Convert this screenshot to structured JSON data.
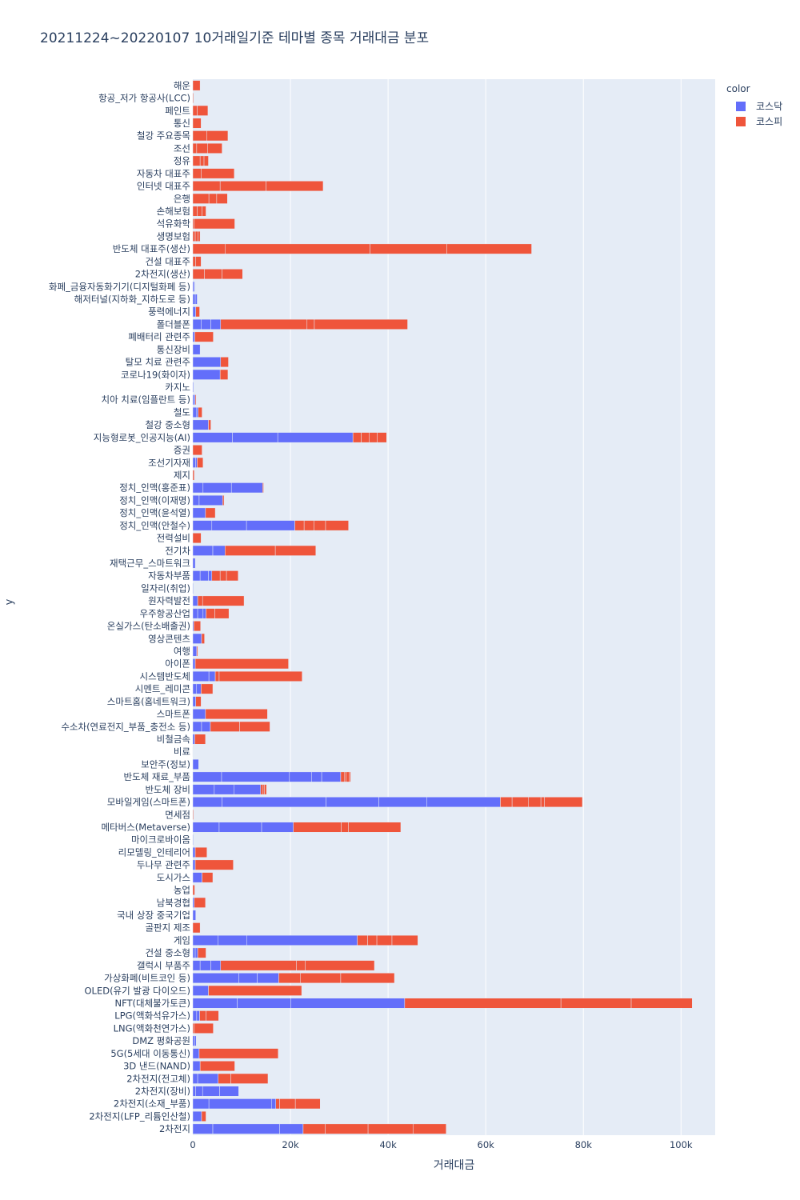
{
  "chart_data": {
    "type": "bar",
    "orientation": "horizontal",
    "barmode": "stack",
    "title": "20211224~20220107 10거래일기준 테마별 종목 거래대금 분포",
    "xlabel": "거래대금",
    "ylabel": "y",
    "xlim": [
      0,
      107000
    ],
    "xticks": [
      0,
      20000,
      40000,
      60000,
      80000,
      100000
    ],
    "xtick_labels": [
      "0",
      "20k",
      "40k",
      "60k",
      "80k",
      "100k"
    ],
    "legend_title": "color",
    "legend_position": "top-right",
    "grid": true,
    "series": [
      {
        "name": "코스닥",
        "color": "#636efa"
      },
      {
        "name": "코스피",
        "color": "#ef553b"
      }
    ],
    "categories": [
      "해운",
      "항공_저가 항공사(LCC)",
      "페인트",
      "통신",
      "철강 주요종목",
      "조선",
      "정유",
      "자동차 대표주",
      "인터넷 대표주",
      "은행",
      "손해보험",
      "석유화학",
      "생명보험",
      "반도체 대표주(생산)",
      "건설 대표주",
      "2차전지(생산)",
      "화폐_금융자동화기기(디지털화폐 등)",
      "해저터널(지하화_지하도로 등)",
      "풍력에너지",
      "폴더블폰",
      "폐배터리 관련주",
      "통신장비",
      "탈모 치료 관련주",
      "코로나19(화이자)",
      "카지노",
      "치아 치료(임플란트 등)",
      "철도",
      "철강 중소형",
      "지능형로봇_인공지능(AI)",
      "증권",
      "조선기자재",
      "제지",
      "정치_인맥(홍준표)",
      "정치_인맥(이재명)",
      "정치_인맥(윤석열)",
      "정치_인맥(안철수)",
      "전력설비",
      "전기차",
      "재택근무_스마트워크",
      "자동차부품",
      "일자리(취업)",
      "원자력발전",
      "우주항공산업",
      "온실가스(탄소배출권)",
      "영상콘텐츠",
      "여행",
      "아이폰",
      "시스템반도체",
      "시멘트_레미콘",
      "스마트홈(홈네트워크)",
      "스마트폰",
      "수소차(연료전지_부품_충전소 등)",
      "비철금속",
      "비료",
      "보안주(정보)",
      "반도체 재료_부품",
      "반도체 장비",
      "모바일게임(스마트폰)",
      "면세점",
      "메타버스(Metaverse)",
      "마이크로바이옴",
      "리모델링_인테리어",
      "두나무 관련주",
      "도시가스",
      "농업",
      "남북경협",
      "국내 상장 중국기업",
      "골판지 제조",
      "게임",
      "건설 중소형",
      "갤럭시 부품주",
      "가상화폐(비트코인 등)",
      "OLED(유기 발광 다이오드)",
      "NFT(대체불가토큰)",
      "LPG(액화석유가스)",
      "LNG(액화천연가스)",
      "DMZ 평화공원",
      "5G(5세대 이동통신)",
      "3D 낸드(NAND)",
      "2차전지(전고체)",
      "2차전지(장비)",
      "2차전지(소재_부품)",
      "2차전지(LFP_리튬인산철)",
      "2차전지"
    ],
    "segments": [
      [
        [],
        [
          1500
        ]
      ],
      [
        [],
        [
          150
        ]
      ],
      [
        [],
        [
          900,
          2200
        ]
      ],
      [
        [],
        [
          1700
        ]
      ],
      [
        [],
        [
          2900,
          4300
        ]
      ],
      [
        [],
        [
          800,
          2200,
          3000
        ]
      ],
      [
        [],
        [
          1500,
          800,
          900
        ]
      ],
      [
        [],
        [
          1700,
          6800
        ]
      ],
      [
        [],
        [
          5600,
          9400,
          11700
        ]
      ],
      [
        [],
        [
          3300,
          1600,
          2200
        ]
      ],
      [
        [],
        [
          900,
          1000,
          800
        ]
      ],
      [
        [],
        [
          300,
          8300
        ]
      ],
      [
        [],
        [
          500,
          600,
          400
        ]
      ],
      [
        [],
        [
          6600,
          29700,
          15700,
          17400
        ]
      ],
      [
        [],
        [
          600,
          1100
        ]
      ],
      [
        [],
        [
          2400,
          3600,
          4200
        ]
      ],
      [
        [
          200,
          200
        ],
        []
      ],
      [
        [
          500,
          400
        ],
        []
      ],
      [
        [
          600
        ],
        [
          800
        ]
      ],
      [
        [
          1700,
          2000,
          2000
        ],
        [
          17700,
          1500,
          19100
        ]
      ],
      [
        [
          400
        ],
        [
          3800
        ]
      ],
      [
        [
          1500
        ],
        []
      ],
      [
        [
          5700
        ],
        [
          1600
        ]
      ],
      [
        [
          5600
        ],
        [
          1600
        ]
      ],
      [
        [
          150
        ],
        []
      ],
      [
        [
          300,
          200
        ],
        [
          200
        ]
      ],
      [
        [
          800,
          300
        ],
        [
          800
        ]
      ],
      [
        [
          3200
        ],
        [
          500
        ]
      ],
      [
        [
          8100,
          9300,
          15400
        ],
        [
          1700,
          1600,
          1700,
          1900
        ]
      ],
      [
        [],
        [
          1900
        ]
      ],
      [
        [
          600,
          300
        ],
        [
          1200
        ]
      ],
      [
        [],
        [
          300
        ]
      ],
      [
        [
          2100,
          5800,
          6400
        ],
        [
          200
        ]
      ],
      [
        [
          1300,
          4800
        ],
        [
          300
        ]
      ],
      [
        [
          2600
        ],
        [
          2000
        ]
      ],
      [
        [
          3900,
          7100,
          9900
        ],
        [
          1900,
          2000,
          2400,
          4700
        ]
      ],
      [
        [],
        [
          1700
        ]
      ],
      [
        [
          4100,
          2500
        ],
        [
          10300,
          8300
        ]
      ],
      [
        [
          500
        ],
        []
      ],
      [
        [
          1500,
          1700,
          700
        ],
        [
          1700,
          1300,
          2400
        ]
      ],
      [
        [
          100
        ],
        []
      ],
      [
        [
          1000
        ],
        [
          1000,
          8500
        ]
      ],
      [
        [
          1000,
          1100,
          600
        ],
        [
          1800,
          2900
        ]
      ],
      [
        [
          200
        ],
        [
          1400
        ]
      ],
      [
        [
          1800
        ],
        [
          600
        ]
      ],
      [
        [
          800
        ],
        [
          200
        ]
      ],
      [
        [
          500
        ],
        [
          19100
        ]
      ],
      [
        [
          3300,
          1300
        ],
        [
          800,
          17000
        ]
      ],
      [
        [
          700,
          1000
        ],
        [
          2400
        ]
      ],
      [
        [
          600
        ],
        [
          1100
        ]
      ],
      [
        [
          2600
        ],
        [
          12700
        ]
      ],
      [
        [
          1800,
          1800
        ],
        [
          6000,
          6200
        ]
      ],
      [
        [
          400
        ],
        [
          2200
        ]
      ],
      [
        [],
        [
          50
        ]
      ],
      [
        [
          1200
        ],
        []
      ],
      [
        [
          5900,
          13900,
          4500,
          2100,
          3900
        ],
        [
          800,
          300,
          600,
          300
        ]
      ],
      [
        [
          4400,
          4000,
          5500
        ],
        [
          500,
          300,
          400
        ]
      ],
      [
        [
          6000,
          21300,
          10800,
          9800,
          15100
        ],
        [
          2400,
          3300,
          2600,
          700,
          7800
        ]
      ],
      [
        [],
        [
          150
        ]
      ],
      [
        [
          5400,
          8700,
          6500
        ],
        [
          9800,
          1500,
          10700
        ]
      ],
      [
        [
          100
        ],
        []
      ],
      [
        [
          500
        ],
        [
          2400
        ]
      ],
      [
        [
          500
        ],
        [
          7800
        ]
      ],
      [
        [
          1900
        ],
        [
          2200
        ]
      ],
      [
        [],
        [
          400
        ]
      ],
      [
        [
          300
        ],
        [
          2300
        ]
      ],
      [
        [
          600
        ],
        []
      ],
      [
        [],
        [
          1500
        ]
      ],
      [
        [
          5200,
          5900,
          22600
        ],
        [
          2100,
          1900,
          3100,
          5300
        ]
      ],
      [
        [
          500,
          500
        ],
        [
          1700
        ]
      ],
      [
        [
          1500,
          2200,
          2000
        ],
        [
          15500,
          1800,
          14200
        ]
      ],
      [
        [
          9400,
          3800,
          4400
        ],
        [
          4400,
          8300,
          11000
        ]
      ],
      [
        [
          3200
        ],
        [
          19100
        ]
      ],
      [
        [
          9100,
          11000,
          23300
        ],
        [
          32000,
          14400,
          12500
        ]
      ],
      [
        [
          800,
          600
        ],
        [
          1300,
          2600
        ]
      ],
      [
        [],
        [
          300,
          3900
        ]
      ],
      [
        [
          400,
          300
        ],
        []
      ],
      [
        [
          1300
        ],
        [
          16200
        ]
      ],
      [
        [
          1500
        ],
        [
          7100
        ]
      ],
      [
        [
          1000,
          4200
        ],
        [
          2600,
          7600
        ]
      ],
      [
        [
          600,
          1400,
          3500,
          3900
        ],
        []
      ],
      [
        [
          3300,
          12800,
          900
        ],
        [
          800,
          3200,
          5100
        ]
      ],
      [
        [
          1800
        ],
        [
          900
        ]
      ],
      [
        [
          4100,
          13700,
          4800
        ],
        [
          4500,
          8800,
          9200,
          6800
        ]
      ]
    ]
  }
}
